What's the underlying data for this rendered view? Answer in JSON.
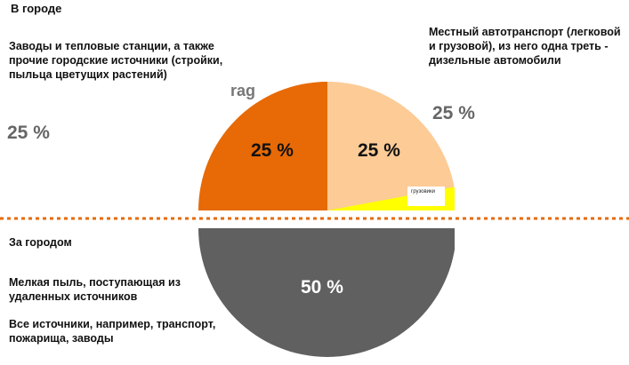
{
  "chart_data": {
    "type": "pie",
    "title": "",
    "groups": [
      {
        "name": "В городе",
        "slices": [
          {
            "label": "Заводы и тепловые станции, а также прочие городские источники (стройки, пыльца цветущих растений)",
            "value": 25,
            "value_label": "25 %",
            "color": "#E76A06"
          },
          {
            "label": "Местный автотранспорт (легковой и грузовой), из него одна треть - дизельные автомобили",
            "value": 25,
            "value_label": "25 %",
            "color": "#FCCB96",
            "sub_slice": {
              "label": "грузовики",
              "color": "#FFFF00"
            }
          }
        ]
      },
      {
        "name": "За городом",
        "slices": [
          {
            "label": "Мелкая пыль, поступающая из удаленных источников / Все источники, например, транспорт, пожарища, заводы",
            "value": 50,
            "value_label": "50 %",
            "color": "#606060"
          }
        ]
      }
    ],
    "side_labels": {
      "left": "25 %",
      "right": "25 %",
      "stray": "rag"
    }
  },
  "text": {
    "city": "В городе",
    "factories": "Заводы и тепловые станции, а также прочие городские источники (стройки, пыльца цветущих растений)",
    "transport": "Местный автотранспорт (легковой и грузовой), из него одна треть - дизельные автомобили",
    "outside": "За городом",
    "dust": "Мелкая пыль, поступающая из удаленных источников",
    "all_sources": "Все источники, например, транспорт, пожарища, заводы",
    "trucks": "грузовики"
  }
}
